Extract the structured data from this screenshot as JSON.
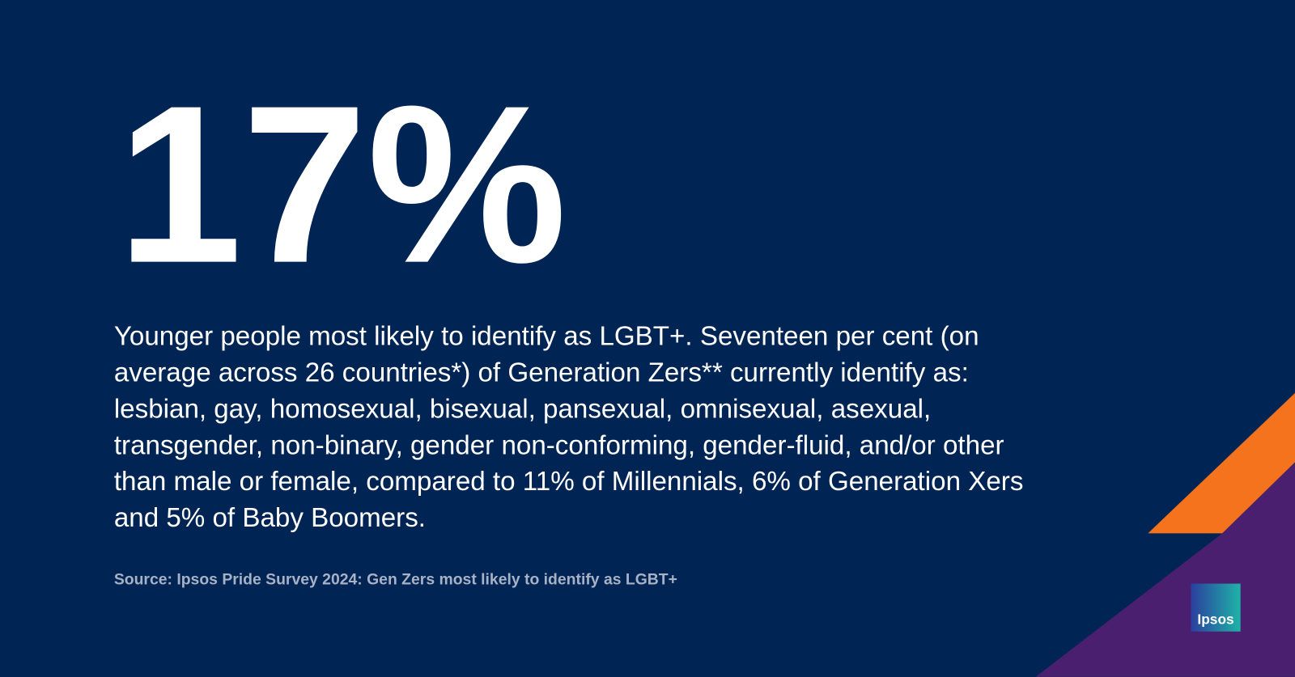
{
  "headline": "17%",
  "body": {
    "lines": [
      "Younger people most likely to identify as LGBT+. Seventeen per cent (on",
      "average across 26 countries*) of Generation Zers** currently identify as:",
      "lesbian, gay, homosexual, bisexual, pansexual, omnisexual, asexual,",
      "transgender, non-binary, gender non-conforming, gender-fluid, and/or other",
      "than male or female, compared to 11% of Millennials, 6% of Generation Xers",
      "and 5% of Baby Boomers."
    ]
  },
  "source": "Source: Ipsos Pride Survey 2024: Gen Zers most likely to identify as LGBT+",
  "logo": "Ipsos"
}
